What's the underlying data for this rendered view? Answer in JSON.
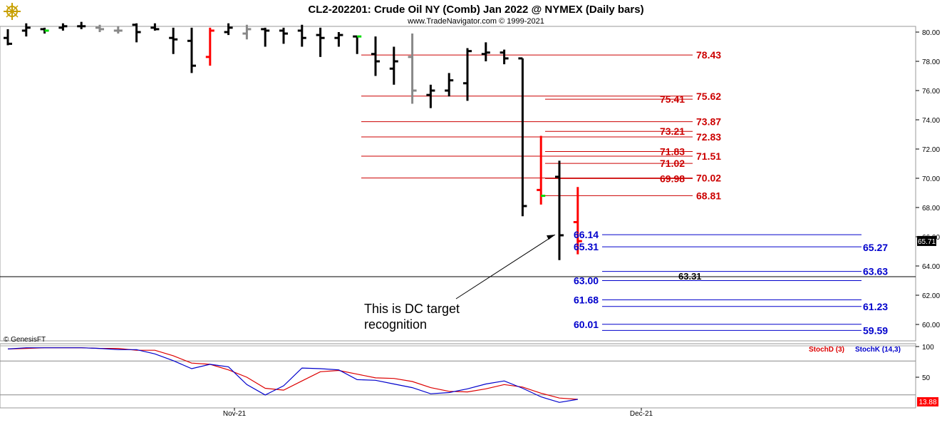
{
  "header": {
    "title": "CL2-202201:  Crude Oil NY (Comb) Jan 2022 @ NYMEX  (Daily bars)",
    "subtitle": "www.TradeNavigator.com © 1999-2021",
    "watermark": "© GenesisFT",
    "logo_icon": "ship-helm-icon"
  },
  "colors": {
    "up_bar": "#000000",
    "down_bar": "#ff0000",
    "flat_bar": "#888888",
    "target_red": "#cc0000",
    "target_blue": "#0000cc",
    "stoch_d": "#dd0000",
    "stoch_k": "#0000cc",
    "green_tick": "#00dd00"
  },
  "chart_data": [
    {
      "type": "bar",
      "subtype": "ohlc",
      "y_ticks": [
        "80.00",
        "78.00",
        "76.00",
        "74.00",
        "72.00",
        "70.00",
        "68.00",
        "66.00",
        "64.00",
        "62.00",
        "60.00"
      ],
      "x_ticks": [
        "Nov-21",
        "Dec-21"
      ],
      "ylim": [
        58.6,
        80.4
      ],
      "last_price_label": "65.71",
      "bars": [
        {
          "o": 79.6,
          "h": 80.2,
          "l": 79.1,
          "c": 79.2,
          "color": "black"
        },
        {
          "o": 80.1,
          "h": 80.6,
          "l": 79.7,
          "c": 80.3,
          "color": "black"
        },
        {
          "o": 80.2,
          "h": 80.3,
          "l": 79.9,
          "c": 80.1,
          "color": "green"
        },
        {
          "o": 80.3,
          "h": 80.6,
          "l": 80.1,
          "c": 80.4,
          "color": "black"
        },
        {
          "o": 80.4,
          "h": 80.7,
          "l": 80.2,
          "c": 80.4,
          "color": "black"
        },
        {
          "o": 80.3,
          "h": 80.5,
          "l": 80.0,
          "c": 80.2,
          "color": "gray"
        },
        {
          "o": 80.1,
          "h": 80.4,
          "l": 79.9,
          "c": 80.1,
          "color": "gray"
        },
        {
          "o": 80.5,
          "h": 80.6,
          "l": 79.3,
          "c": 80.0,
          "color": "black"
        },
        {
          "o": 80.3,
          "h": 80.6,
          "l": 80.1,
          "c": 80.2,
          "color": "black"
        },
        {
          "o": 79.6,
          "h": 80.3,
          "l": 78.5,
          "c": 79.5,
          "color": "black"
        },
        {
          "o": 79.4,
          "h": 80.3,
          "l": 77.2,
          "c": 77.7,
          "color": "black"
        },
        {
          "o": 78.3,
          "h": 80.3,
          "l": 77.7,
          "c": 80.1,
          "color": "red"
        },
        {
          "o": 80.0,
          "h": 80.6,
          "l": 79.8,
          "c": 80.3,
          "color": "black"
        },
        {
          "o": 79.9,
          "h": 80.5,
          "l": 79.5,
          "c": 80.2,
          "color": "gray"
        },
        {
          "o": 80.2,
          "h": 80.3,
          "l": 79.0,
          "c": 80.1,
          "color": "black"
        },
        {
          "o": 80.1,
          "h": 80.3,
          "l": 79.2,
          "c": 79.9,
          "color": "black"
        },
        {
          "o": 80.1,
          "h": 80.5,
          "l": 79.0,
          "c": 79.6,
          "color": "black"
        },
        {
          "o": 79.8,
          "h": 80.3,
          "l": 78.3,
          "c": 79.6,
          "color": "black"
        },
        {
          "o": 79.6,
          "h": 80.0,
          "l": 79.0,
          "c": 79.8,
          "color": "black"
        },
        {
          "o": 79.7,
          "h": 79.7,
          "l": 78.5,
          "c": 79.7,
          "color": "green"
        },
        {
          "o": 78.5,
          "h": 79.7,
          "l": 77.0,
          "c": 78.0,
          "color": "black"
        },
        {
          "o": 77.5,
          "h": 79.0,
          "l": 76.4,
          "c": 78.0,
          "color": "black"
        },
        {
          "o": 78.3,
          "h": 79.9,
          "l": 75.1,
          "c": 76.0,
          "color": "gray"
        },
        {
          "o": 75.7,
          "h": 76.4,
          "l": 74.8,
          "c": 76.0,
          "color": "black"
        },
        {
          "o": 76.0,
          "h": 77.2,
          "l": 75.6,
          "c": 76.7,
          "color": "black"
        },
        {
          "o": 76.5,
          "h": 78.9,
          "l": 75.3,
          "c": 78.7,
          "color": "black"
        },
        {
          "o": 78.5,
          "h": 79.3,
          "l": 78.0,
          "c": 78.6,
          "color": "black"
        },
        {
          "o": 78.6,
          "h": 78.8,
          "l": 77.8,
          "c": 78.2,
          "color": "black"
        },
        {
          "o": 78.2,
          "h": 78.2,
          "l": 67.4,
          "c": 68.1,
          "color": "black"
        },
        {
          "o": 69.2,
          "h": 72.9,
          "l": 68.2,
          "c": 68.8,
          "color": "red_green"
        },
        {
          "o": 70.1,
          "h": 71.2,
          "l": 64.4,
          "c": 66.1,
          "color": "black"
        },
        {
          "o": 67.0,
          "h": 69.4,
          "l": 64.8,
          "c": 65.7,
          "color": "red"
        }
      ],
      "levels": [
        {
          "value": 78.43,
          "color": "red",
          "line": "long",
          "label": "78.43",
          "label_side": "right"
        },
        {
          "value": 75.62,
          "color": "red",
          "line": "long",
          "label": "75.62",
          "label_side": "right"
        },
        {
          "value": 75.41,
          "color": "red",
          "line": "short",
          "label": "75.41",
          "label_side": "left"
        },
        {
          "value": 73.87,
          "color": "red",
          "line": "long",
          "label": "73.87",
          "label_side": "right"
        },
        {
          "value": 73.21,
          "color": "red",
          "line": "short",
          "label": "73.21",
          "label_side": "left"
        },
        {
          "value": 72.83,
          "color": "red",
          "line": "long",
          "label": "72.83",
          "label_side": "right"
        },
        {
          "value": 71.83,
          "color": "red",
          "line": "short",
          "label": "71.83",
          "label_side": "left"
        },
        {
          "value": 71.51,
          "color": "red",
          "line": "long",
          "label": "71.51",
          "label_side": "right"
        },
        {
          "value": 71.02,
          "color": "red",
          "line": "short",
          "label": "71.02",
          "label_side": "left"
        },
        {
          "value": 70.02,
          "color": "red",
          "line": "long",
          "label": "70.02",
          "label_side": "right"
        },
        {
          "value": 69.98,
          "color": "red",
          "line": "short",
          "label": "69.98",
          "label_side": "left"
        },
        {
          "value": 68.81,
          "color": "red",
          "line": "short",
          "label": "68.81",
          "label_side": "right"
        },
        {
          "value": 66.14,
          "color": "blue",
          "line": "low",
          "label": "66.14",
          "label_side": "left"
        },
        {
          "value": 65.31,
          "color": "blue",
          "line": "low",
          "label": "65.31",
          "label_side": "left"
        },
        {
          "value": 65.27,
          "color": "blue",
          "line": "none",
          "label": "65.27",
          "label_side": "right"
        },
        {
          "value": 63.63,
          "color": "blue",
          "line": "lowshort",
          "label": "63.63",
          "label_side": "right"
        },
        {
          "value": 63.31,
          "color": "black",
          "line": "horizontal",
          "label": "63.31",
          "label_side": "mid"
        },
        {
          "value": 63.0,
          "color": "blue",
          "line": "lowshort",
          "label": "63.00",
          "label_side": "left"
        },
        {
          "value": 61.68,
          "color": "blue",
          "line": "lowshort",
          "label": "61.68",
          "label_side": "left"
        },
        {
          "value": 61.23,
          "color": "blue",
          "line": "lowshort",
          "label": "61.23",
          "label_side": "right"
        },
        {
          "value": 60.01,
          "color": "blue",
          "line": "lowshort",
          "label": "60.01",
          "label_side": "left"
        },
        {
          "value": 59.59,
          "color": "blue",
          "line": "lowshort",
          "label": "59.59",
          "label_side": "right"
        }
      ],
      "annotation": {
        "lines": [
          "This is DC target",
          "recognition"
        ],
        "arrow_to": {
          "bar_index": 30,
          "value": 66.14
        }
      }
    },
    {
      "type": "line",
      "indicator": "stochastic",
      "legend": [
        "StochD (3)",
        "StochK (14,3)"
      ],
      "y_ticks": [
        "100",
        "50"
      ],
      "ylim": [
        -5,
        108
      ],
      "last_value_label": "13.88",
      "series": [
        {
          "name": "StochD (3)",
          "color": "red",
          "values": [
            96,
            97,
            98,
            98,
            98,
            97,
            97,
            94,
            94,
            85,
            73,
            71,
            62,
            50,
            32,
            29,
            44,
            59,
            61,
            55,
            49,
            48,
            43,
            33,
            27,
            26,
            31,
            38,
            34,
            24,
            16,
            14
          ]
        },
        {
          "name": "StochK (14,3)",
          "color": "blue",
          "values": [
            96,
            98,
            98,
            98,
            98,
            97,
            95,
            95,
            88,
            77,
            64,
            71,
            67,
            38,
            21,
            36,
            65,
            64,
            62,
            46,
            45,
            39,
            33,
            23,
            25,
            31,
            39,
            44,
            32,
            18,
            9,
            14
          ]
        }
      ]
    }
  ]
}
